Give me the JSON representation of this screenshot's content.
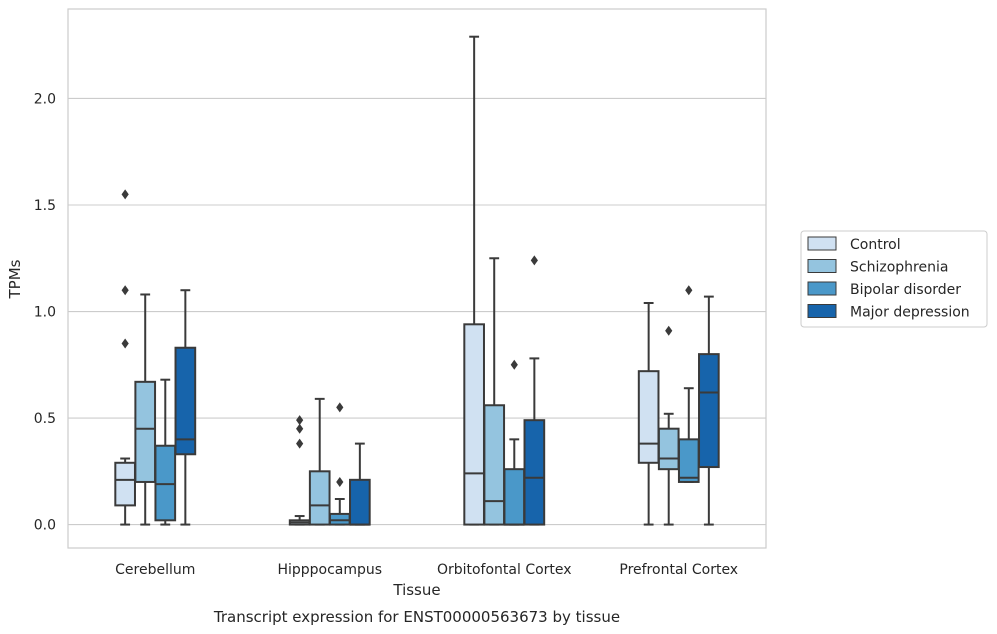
{
  "chart_data": {
    "type": "box",
    "xlabel": "Tissue",
    "ylabel": "TPMs",
    "caption": "Transcript expression for ENST00000563673 by tissue",
    "ylim": [
      -0.11,
      2.42
    ],
    "yticks": [
      0.0,
      0.5,
      1.0,
      1.5,
      2.0
    ],
    "ytick_labels": [
      "0.0",
      "0.5",
      "1.0",
      "1.5",
      "2.0"
    ],
    "grid": "horizontal",
    "legend_position": "right",
    "categories": [
      "Cerebellum",
      "Hipppocampus",
      "Orbitofontal Cortex",
      "Prefrontal Cortex"
    ],
    "series": [
      {
        "name": "Control",
        "color": "#d0e1f2",
        "boxes": [
          {
            "whislo": 0.0,
            "q1": 0.09,
            "med": 0.21,
            "q3": 0.29,
            "whishi": 0.31,
            "fliers": [
              0.85,
              1.1,
              1.55
            ]
          },
          {
            "whislo": 0.0,
            "q1": 0.0,
            "med": 0.01,
            "q3": 0.02,
            "whishi": 0.04,
            "fliers": [
              0.38,
              0.45,
              0.49
            ]
          },
          {
            "whislo": 0.0,
            "q1": 0.0,
            "med": 0.24,
            "q3": 0.94,
            "whishi": 2.29,
            "fliers": []
          },
          {
            "whislo": 0.0,
            "q1": 0.29,
            "med": 0.38,
            "q3": 0.72,
            "whishi": 1.04,
            "fliers": []
          }
        ]
      },
      {
        "name": "Schizophrenia",
        "color": "#94c4df",
        "boxes": [
          {
            "whislo": 0.0,
            "q1": 0.2,
            "med": 0.45,
            "q3": 0.67,
            "whishi": 1.08,
            "fliers": []
          },
          {
            "whislo": 0.0,
            "q1": 0.0,
            "med": 0.09,
            "q3": 0.25,
            "whishi": 0.59,
            "fliers": []
          },
          {
            "whislo": 0.0,
            "q1": 0.0,
            "med": 0.11,
            "q3": 0.56,
            "whishi": 1.25,
            "fliers": []
          },
          {
            "whislo": 0.0,
            "q1": 0.26,
            "med": 0.31,
            "q3": 0.45,
            "whishi": 0.52,
            "fliers": [
              0.91
            ]
          }
        ]
      },
      {
        "name": "Bipolar disorder",
        "color": "#4a98c9",
        "boxes": [
          {
            "whislo": 0.0,
            "q1": 0.02,
            "med": 0.19,
            "q3": 0.37,
            "whishi": 0.68,
            "fliers": []
          },
          {
            "whislo": 0.0,
            "q1": 0.0,
            "med": 0.02,
            "q3": 0.05,
            "whishi": 0.12,
            "fliers": [
              0.2,
              0.55
            ]
          },
          {
            "whislo": 0.0,
            "q1": 0.0,
            "med": 0.0,
            "q3": 0.26,
            "whishi": 0.4,
            "fliers": [
              0.75
            ]
          },
          {
            "whislo": 0.2,
            "q1": 0.2,
            "med": 0.22,
            "q3": 0.4,
            "whishi": 0.64,
            "fliers": [
              1.1
            ]
          }
        ]
      },
      {
        "name": "Major depression",
        "color": "#1764ab",
        "boxes": [
          {
            "whislo": 0.0,
            "q1": 0.33,
            "med": 0.4,
            "q3": 0.83,
            "whishi": 1.1,
            "fliers": []
          },
          {
            "whislo": 0.0,
            "q1": 0.0,
            "med": 0.0,
            "q3": 0.21,
            "whishi": 0.38,
            "fliers": []
          },
          {
            "whislo": 0.0,
            "q1": 0.0,
            "med": 0.22,
            "q3": 0.49,
            "whishi": 0.78,
            "fliers": [
              1.24
            ]
          },
          {
            "whislo": 0.0,
            "q1": 0.27,
            "med": 0.62,
            "q3": 0.8,
            "whishi": 1.07,
            "fliers": []
          }
        ]
      }
    ]
  }
}
